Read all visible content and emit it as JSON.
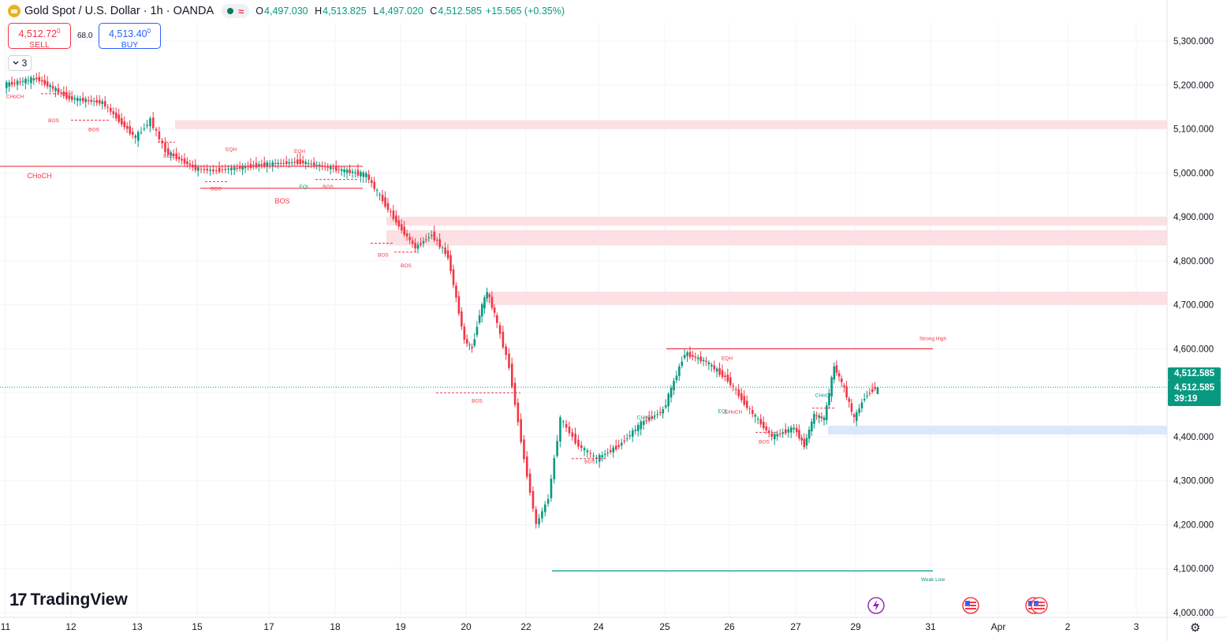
{
  "header": {
    "title": "Gold Spot / U.S. Dollar · 1h · OANDA",
    "status_wave": "≈",
    "ohlc": [
      {
        "key": "O",
        "value": "4,497.030"
      },
      {
        "key": "H",
        "value": "4,513.825"
      },
      {
        "key": "L",
        "value": "4,497.020"
      },
      {
        "key": "C",
        "value": "4,512.585"
      }
    ],
    "change": "+15.565 (+0.35%)"
  },
  "trade": {
    "sell_price": "4,512.72",
    "sell_price_sup": "0",
    "sell_label": "SELL",
    "spread": "68.0",
    "buy_price": "4,513.40",
    "buy_price_sup": "0",
    "buy_label": "BUY"
  },
  "indicators_toggle": "3",
  "logo": {
    "mark": "17",
    "text": "TradingView"
  },
  "price_tag": {
    "last": "4,512.585",
    "close": "4,512.585",
    "countdown": "39:19"
  },
  "colors": {
    "up": "#089981",
    "down": "#f23645",
    "supply_zone": "#fcdde0",
    "demand_zone": "#dde7fb",
    "grid": "#f0f3fa",
    "text": "#131722"
  },
  "icons": [
    "gold-spot-icon",
    "live-status-icon",
    "wave-icon",
    "collapse-chevron-icon",
    "lightning-event-icon",
    "us-flag-event-icon",
    "us-flag-event-icon",
    "gear-icon"
  ],
  "chart_data": {
    "type": "candlestick",
    "symbol": "XAUUSD",
    "timeframe": "1h",
    "y_axis": {
      "ticks": [
        "5,300.000",
        "5,200.000",
        "5,100.000",
        "5,000.000",
        "4,900.000",
        "4,800.000",
        "4,700.000",
        "4,600.000",
        "4,400.000",
        "4,300.000",
        "4,200.000",
        "4,100.000",
        "4,000.000"
      ],
      "range": [
        3990,
        5340
      ]
    },
    "x_axis": {
      "ticks": [
        "11",
        "12",
        "13",
        "15",
        "17",
        "18",
        "19",
        "20",
        "22",
        "24",
        "25",
        "26",
        "27",
        "29",
        "31",
        "Apr",
        "2",
        "3"
      ]
    },
    "price_path": [
      [
        "11",
        5200
      ],
      [
        "11",
        5215
      ],
      [
        "12",
        5170
      ],
      [
        "12",
        5160
      ],
      [
        "13",
        5080
      ],
      [
        "13",
        5120
      ],
      [
        "14",
        5050
      ],
      [
        "15",
        5010
      ],
      [
        "15",
        5005
      ],
      [
        "16",
        5010
      ],
      [
        "17",
        5020
      ],
      [
        "17",
        5025
      ],
      [
        "18",
        5010
      ],
      [
        "18",
        4995
      ],
      [
        "19",
        4880
      ],
      [
        "19",
        4830
      ],
      [
        "19",
        4860
      ],
      [
        "19",
        4810
      ],
      [
        "20",
        4620
      ],
      [
        "20",
        4600
      ],
      [
        "20",
        4680
      ],
      [
        "20",
        4730
      ],
      [
        "21",
        4680
      ],
      [
        "21",
        4560
      ],
      [
        "22",
        4350
      ],
      [
        "22",
        4200
      ],
      [
        "22",
        4260
      ],
      [
        "23",
        4440
      ],
      [
        "23",
        4380
      ],
      [
        "24",
        4350
      ],
      [
        "24",
        4380
      ],
      [
        "24",
        4430
      ],
      [
        "25",
        4460
      ],
      [
        "25",
        4590
      ],
      [
        "25",
        4570
      ],
      [
        "26",
        4530
      ],
      [
        "26",
        4460
      ],
      [
        "26",
        4400
      ],
      [
        "27",
        4420
      ],
      [
        "27",
        4380
      ],
      [
        "27",
        4450
      ],
      [
        "28",
        4440
      ],
      [
        "28",
        4560
      ],
      [
        "28",
        4510
      ],
      [
        "29",
        4440
      ],
      [
        "29",
        4490
      ],
      [
        "29",
        4512.585
      ]
    ],
    "zones": [
      {
        "kind": "supply",
        "from": 5100,
        "to": 5120
      },
      {
        "kind": "supply",
        "from": 4880,
        "to": 4900
      },
      {
        "kind": "supply",
        "from": 4835,
        "to": 4870
      },
      {
        "kind": "supply",
        "from": 4700,
        "to": 4730
      },
      {
        "kind": "demand",
        "from": 4405,
        "to": 4425
      }
    ],
    "levels": [
      {
        "label": "Strong High",
        "price": 4600,
        "color": "#f23645"
      },
      {
        "label": "Weak Low",
        "price": 4095,
        "color": "#089981"
      },
      {
        "label": "CHoCH",
        "price": 5015,
        "color": "#f23645"
      },
      {
        "label": "BOS",
        "price": 4965,
        "color": "#f23645"
      }
    ],
    "structure_labels": [
      {
        "text": "CHoCH",
        "color": "#f23645",
        "price": 5170
      },
      {
        "text": "BOS",
        "color": "#f23645",
        "price": 5115
      },
      {
        "text": "BOS",
        "color": "#f23645",
        "price": 5095
      },
      {
        "text": "BOS",
        "color": "#f23645",
        "price": 5035
      },
      {
        "text": "EQH",
        "color": "#f23645",
        "price": 5050
      },
      {
        "text": "EQH",
        "color": "#f23645",
        "price": 5045
      },
      {
        "text": "BOS",
        "color": "#f23645",
        "price": 4960
      },
      {
        "text": "EQL",
        "color": "#089981",
        "price": 4965
      },
      {
        "text": "BOS",
        "color": "#f23645",
        "price": 4965
      },
      {
        "text": "BOS",
        "color": "#f23645",
        "price": 4810
      },
      {
        "text": "BOS",
        "color": "#f23645",
        "price": 4785
      },
      {
        "text": "BOS",
        "color": "#f23645",
        "price": 4478
      },
      {
        "text": "BOS",
        "color": "#f23645",
        "price": 4340
      },
      {
        "text": "CHoCH",
        "color": "#089981",
        "price": 4440
      },
      {
        "text": "EQH",
        "color": "#f23645",
        "price": 4575
      },
      {
        "text": "EQL",
        "color": "#089981",
        "price": 4455
      },
      {
        "text": "CHoCH",
        "color": "#f23645",
        "price": 4453
      },
      {
        "text": "BOS",
        "color": "#f23645",
        "price": 4385
      },
      {
        "text": "CHoCH",
        "color": "#089981",
        "price": 4490
      }
    ],
    "last_price": 4512.585
  }
}
